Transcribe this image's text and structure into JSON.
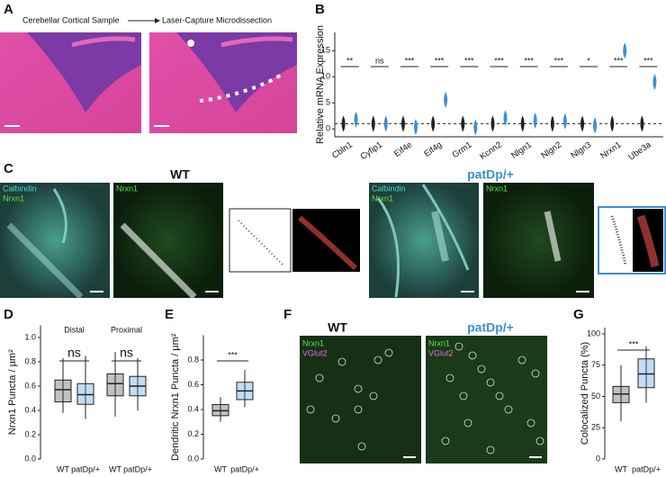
{
  "panel_labels": [
    "A",
    "B",
    "C",
    "D",
    "E",
    "F",
    "G"
  ],
  "panel_a": {
    "left_caption": "Cerebellar Cortical Sample",
    "right_caption": "Laser-Capture Microdissection"
  },
  "panel_c": {
    "wt_title": "WT",
    "mut_title": "patDp/+",
    "stain_1": "Calbindin",
    "stain_2": "Nrxn1"
  },
  "panel_f": {
    "wt_title": "WT",
    "mut_title": "patDp/+",
    "stain_1": "Nrxn1",
    "stain_2": "VGlut2"
  },
  "chart_data": [
    {
      "type": "violin",
      "y_label": "Relative mRNA Expression",
      "categories": [
        "Cbln1",
        "Cyfip1",
        "Eif4e",
        "Eif4g",
        "Grm1",
        "Kcnn2",
        "Nlgn1",
        "Nlgn2",
        "Nlgn3",
        "Nrxn1",
        "Ube3a"
      ],
      "series": [
        {
          "color": "#222222",
          "values": [
            1,
            1,
            1,
            1,
            1,
            1,
            1,
            1,
            1,
            1,
            1
          ]
        },
        {
          "color": "#3b8fd9",
          "values": [
            1.8,
            1.0,
            0.4,
            5.6,
            0.3,
            2.1,
            1.6,
            1.5,
            0.7,
            15.0,
            9.0
          ]
        }
      ],
      "significance": [
        "**",
        "ns",
        "***",
        "***",
        "***",
        "***",
        "***",
        "***",
        "*",
        "***",
        "***"
      ],
      "reference_line": 1,
      "ylim": [
        -1.5,
        18.5
      ],
      "yticks": [
        0,
        5,
        10,
        15
      ]
    },
    {
      "type": "box",
      "y_label": "Nrxn1 Puncta / µm²",
      "groups": [
        "Distal",
        "Proximal"
      ],
      "significance": [
        "ns",
        "ns"
      ],
      "categories": [
        "WT",
        "patDp/+",
        "WT",
        "patDp/+"
      ],
      "colors": [
        "#333333",
        "#3b8fd9",
        "#333333",
        "#3b8fd9"
      ],
      "boxes": [
        {
          "min": 0.38,
          "q1": 0.47,
          "median": 0.57,
          "q3": 0.65,
          "max": 0.83
        },
        {
          "min": 0.33,
          "q1": 0.45,
          "median": 0.53,
          "q3": 0.62,
          "max": 0.85
        },
        {
          "min": 0.35,
          "q1": 0.52,
          "median": 0.62,
          "q3": 0.7,
          "max": 0.88
        },
        {
          "min": 0.4,
          "q1": 0.52,
          "median": 0.6,
          "q3": 0.68,
          "max": 0.83
        }
      ],
      "ylim": [
        0,
        1.1
      ],
      "yticks": [
        {
          "value": 0,
          "label": "0.0"
        },
        0.2,
        0.4,
        0.6,
        0.8,
        {
          "value": 1,
          "label": "1.0"
        }
      ]
    },
    {
      "type": "box",
      "y_label": "Dendritic Nrxn1 Puncta / µm²",
      "significance": [
        "***"
      ],
      "categories": [
        "WT",
        "patDp/+"
      ],
      "colors": [
        "#333333",
        "#3b8fd9"
      ],
      "boxes": [
        {
          "min": 0.3,
          "q1": 0.35,
          "median": 0.39,
          "q3": 0.44,
          "max": 0.5
        },
        {
          "min": 0.42,
          "q1": 0.48,
          "median": 0.55,
          "q3": 0.62,
          "max": 0.72
        }
      ],
      "ylim": [
        0,
        1.0
      ],
      "yticks": [
        {
          "value": 0,
          "label": "0.0"
        },
        0.2,
        0.4,
        0.6,
        0.8
      ]
    },
    {
      "type": "box",
      "y_label": "Colocalized Puncta (%)",
      "significance": [
        "***"
      ],
      "categories": [
        "WT",
        "patDp/+"
      ],
      "colors": [
        "#333333",
        "#3b8fd9"
      ],
      "boxes": [
        {
          "min": 30,
          "q1": 45,
          "median": 52,
          "q3": 58,
          "max": 75
        },
        {
          "min": 45,
          "q1": 57,
          "median": 68,
          "q3": 80,
          "max": 90
        }
      ],
      "ylim": [
        0,
        105
      ],
      "yticks": [
        0,
        25,
        50,
        75,
        100
      ]
    }
  ]
}
